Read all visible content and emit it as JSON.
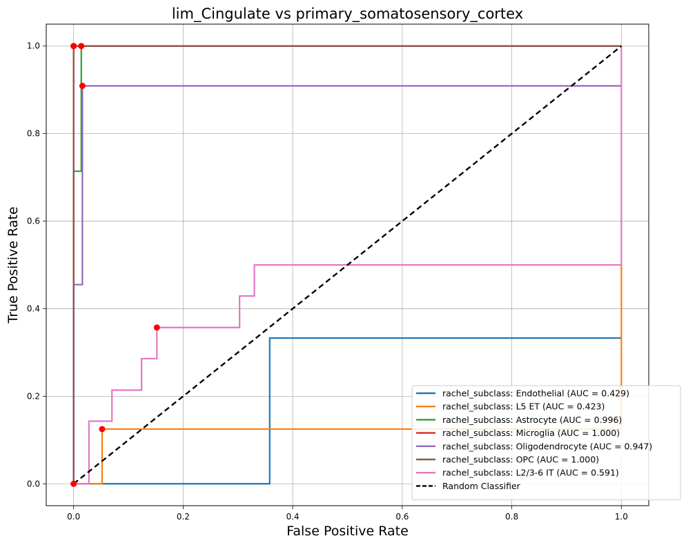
{
  "chart_data": {
    "type": "line",
    "title": "lim_Cingulate vs primary_somatosensory_cortex",
    "xlabel": "False Positive Rate",
    "ylabel": "True Positive Rate",
    "xlim": [
      -0.05,
      1.05
    ],
    "ylim": [
      -0.05,
      1.05
    ],
    "xticks": [
      "0.0",
      "0.2",
      "0.4",
      "0.6",
      "0.8",
      "1.0"
    ],
    "yticks": [
      "0.0",
      "0.2",
      "0.4",
      "0.6",
      "0.8",
      "1.0"
    ],
    "grid": true,
    "legend_position": "lower-right",
    "series": [
      {
        "name": "rachel_subclass: Endothelial (AUC = 0.429)",
        "color": "#1f77b4",
        "x": [
          0,
          0.358,
          0.358,
          1.0
        ],
        "y": [
          0,
          0,
          0.333,
          0.333
        ],
        "optimal_point": null
      },
      {
        "name": "rachel_subclass: L5 ET (AUC = 0.423)",
        "color": "#ff7f0e",
        "x": [
          0,
          0.052,
          0.052,
          1.0,
          1.0
        ],
        "y": [
          0,
          0,
          0.125,
          0.125,
          0.5
        ],
        "optimal_point": [
          0.052,
          0.125
        ]
      },
      {
        "name": "rachel_subclass: Astrocyte (AUC = 0.996)",
        "color": "#2ca02c",
        "x": [
          0,
          0,
          0.014,
          0.014,
          1.0
        ],
        "y": [
          0,
          0.714,
          0.714,
          1.0,
          1.0
        ],
        "optimal_point": [
          0.014,
          1.0
        ]
      },
      {
        "name": "rachel_subclass: Microglia (AUC = 1.000)",
        "color": "#d62728",
        "x": [
          0,
          0,
          1.0
        ],
        "y": [
          0,
          1.0,
          1.0
        ],
        "optimal_point": [
          0,
          1.0
        ]
      },
      {
        "name": "rachel_subclass: Oligodendrocyte (AUC = 0.947)",
        "color": "#9467bd",
        "x": [
          0,
          0,
          0.016,
          0.016,
          1.0
        ],
        "y": [
          0,
          0.455,
          0.455,
          0.909,
          0.909
        ],
        "optimal_point": [
          0.016,
          0.909
        ]
      },
      {
        "name": "rachel_subclass: OPC (AUC = 1.000)",
        "color": "#8c564b",
        "x": [
          0,
          0,
          1.0
        ],
        "y": [
          0,
          1.0,
          1.0
        ],
        "optimal_point": [
          0,
          1.0
        ]
      },
      {
        "name": "rachel_subclass: L2/3-6 IT (AUC = 0.591)",
        "color": "#e377c2",
        "x": [
          0,
          0.028,
          0.028,
          0.07,
          0.07,
          0.124,
          0.124,
          0.152,
          0.152,
          0.303,
          0.303,
          0.33,
          0.33,
          1.0,
          1.0
        ],
        "y": [
          0,
          0,
          0.143,
          0.143,
          0.214,
          0.214,
          0.286,
          0.286,
          0.357,
          0.357,
          0.429,
          0.429,
          0.5,
          0.5,
          1.0
        ],
        "optimal_point": [
          0.152,
          0.357
        ]
      }
    ],
    "reference_line": {
      "name": "Random Classifier",
      "color": "#000000",
      "dashed": true,
      "x": [
        0,
        1
      ],
      "y": [
        0,
        1
      ]
    },
    "extra_points": [
      [
        0,
        0
      ]
    ],
    "point_color": "#ff0000"
  }
}
